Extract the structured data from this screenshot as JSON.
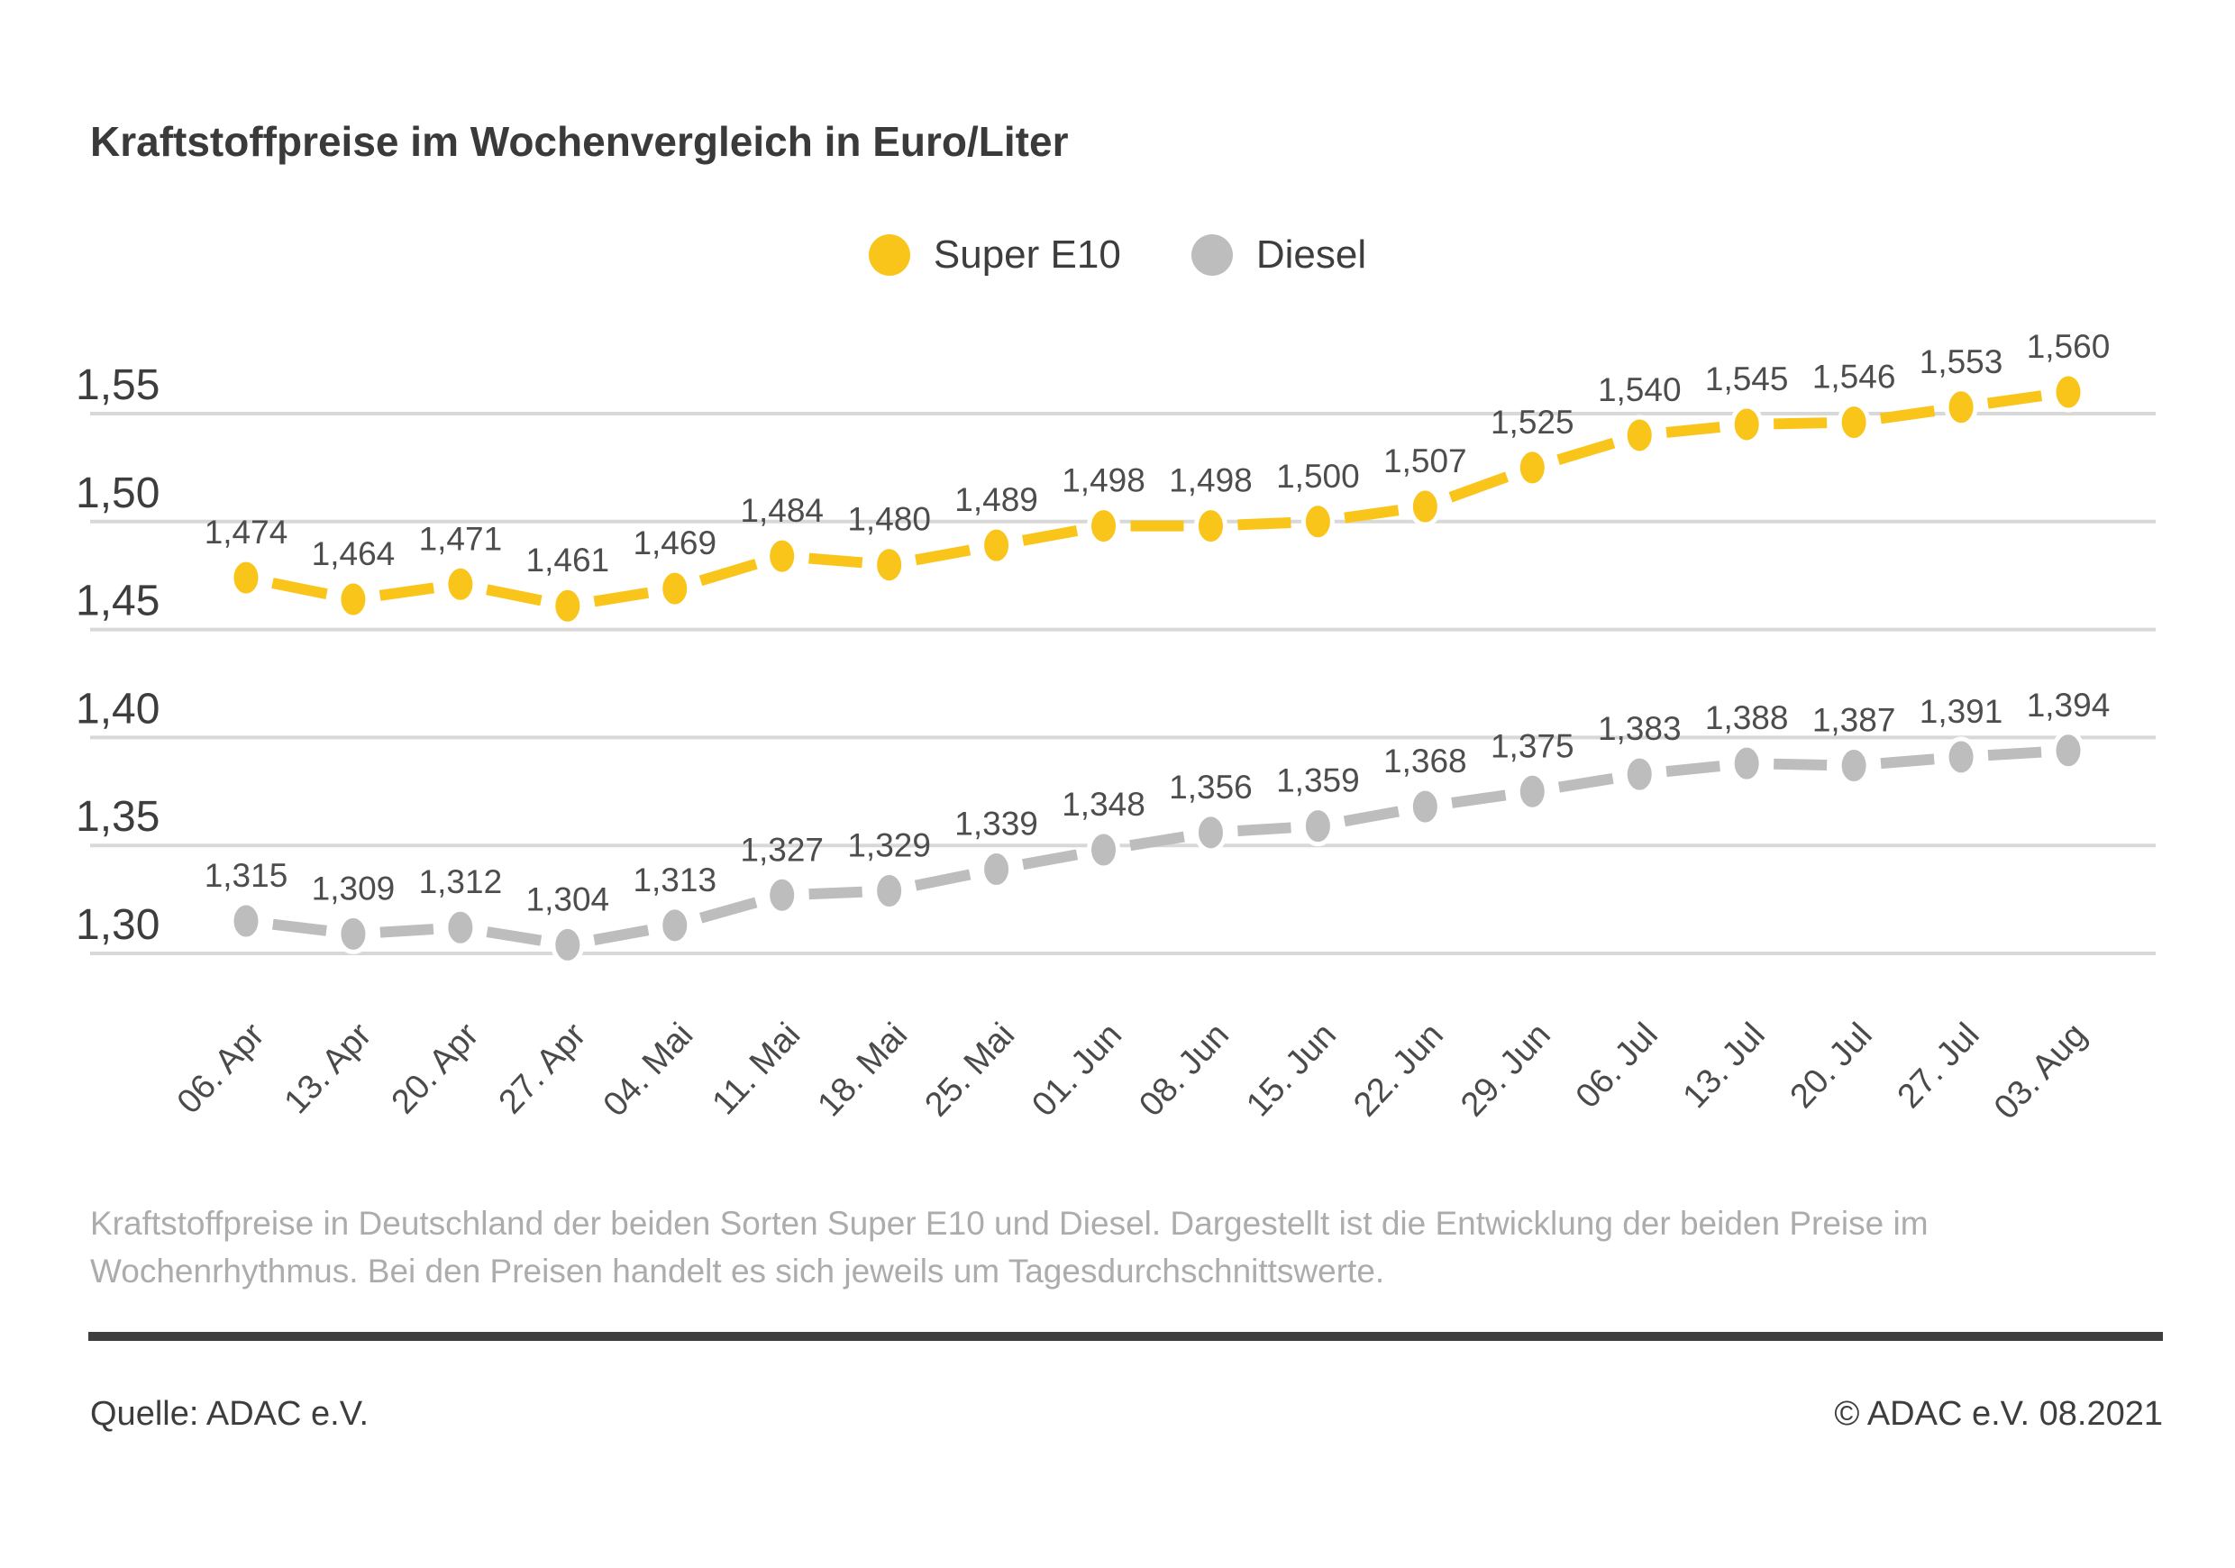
{
  "title": "Kraftstoffpreise im Wochenvergleich in Euro/Liter",
  "legend": {
    "super_e10": "Super E10",
    "diesel": "Diesel"
  },
  "colors": {
    "super_e10": "#f9c51a",
    "diesel": "#bdbdbd",
    "grid": "#d8d8d8",
    "tick_text": "#3d3d3d",
    "value_label_text": "#4d4d4d",
    "muted_text": "#acacac",
    "rule": "#3f3f3f"
  },
  "chart_data": {
    "type": "line",
    "title": "Kraftstoffpreise im Wochenvergleich in Euro/Liter",
    "xlabel": "",
    "ylabel": "Euro/Liter",
    "grid": true,
    "legend_position": "top-center",
    "ylim": [
      1.3,
      1.58
    ],
    "yticks": [
      1.55,
      1.5,
      1.45,
      1.4,
      1.35,
      1.3
    ],
    "ytick_labels": [
      "1,55",
      "1,50",
      "1,45",
      "1,40",
      "1,35",
      "1,30"
    ],
    "categories": [
      "06. Apr",
      "13. Apr",
      "20. Apr",
      "27. Apr",
      "04. Mai",
      "11. Mai",
      "18. Mai",
      "25. Mai",
      "01. Jun",
      "08. Jun",
      "15. Jun",
      "22. Jun",
      "29. Jun",
      "06. Jul",
      "13. Jul",
      "20. Jul",
      "27. Jul",
      "03. Aug"
    ],
    "series": [
      {
        "name": "Super E10",
        "color": "#f9c51a",
        "values": [
          1.474,
          1.464,
          1.471,
          1.461,
          1.469,
          1.484,
          1.48,
          1.489,
          1.498,
          1.498,
          1.5,
          1.507,
          1.525,
          1.54,
          1.545,
          1.546,
          1.553,
          1.56
        ],
        "value_labels": [
          "1,474",
          "1,464",
          "1,471",
          "1,461",
          "1,469",
          "1,484",
          "1,480",
          "1,489",
          "1,498",
          "1,498",
          "1,500",
          "1,507",
          "1,525",
          "1,540",
          "1,545",
          "1,546",
          "1,553",
          "1,560"
        ]
      },
      {
        "name": "Diesel",
        "color": "#bdbdbd",
        "values": [
          1.315,
          1.309,
          1.312,
          1.304,
          1.313,
          1.327,
          1.329,
          1.339,
          1.348,
          1.356,
          1.359,
          1.368,
          1.375,
          1.383,
          1.388,
          1.387,
          1.391,
          1.394
        ],
        "value_labels": [
          "1,315",
          "1,309",
          "1,312",
          "1,304",
          "1,313",
          "1,327",
          "1,329",
          "1,339",
          "1,348",
          "1,356",
          "1,359",
          "1,368",
          "1,375",
          "1,383",
          "1,388",
          "1,387",
          "1,391",
          "1,394"
        ]
      }
    ]
  },
  "description_lines": [
    "Kraftstoffpreise in Deutschland der beiden Sorten Super E10 und Diesel. Dargestellt ist die Entwicklung der beiden Preise im",
    "Wochenrhythmus. Bei den Preisen handelt es sich jeweils um Tagesdurchschnittswerte."
  ],
  "source": {
    "left": "Quelle: ADAC e.V.",
    "right": "© ADAC e.V. 08.2021"
  }
}
